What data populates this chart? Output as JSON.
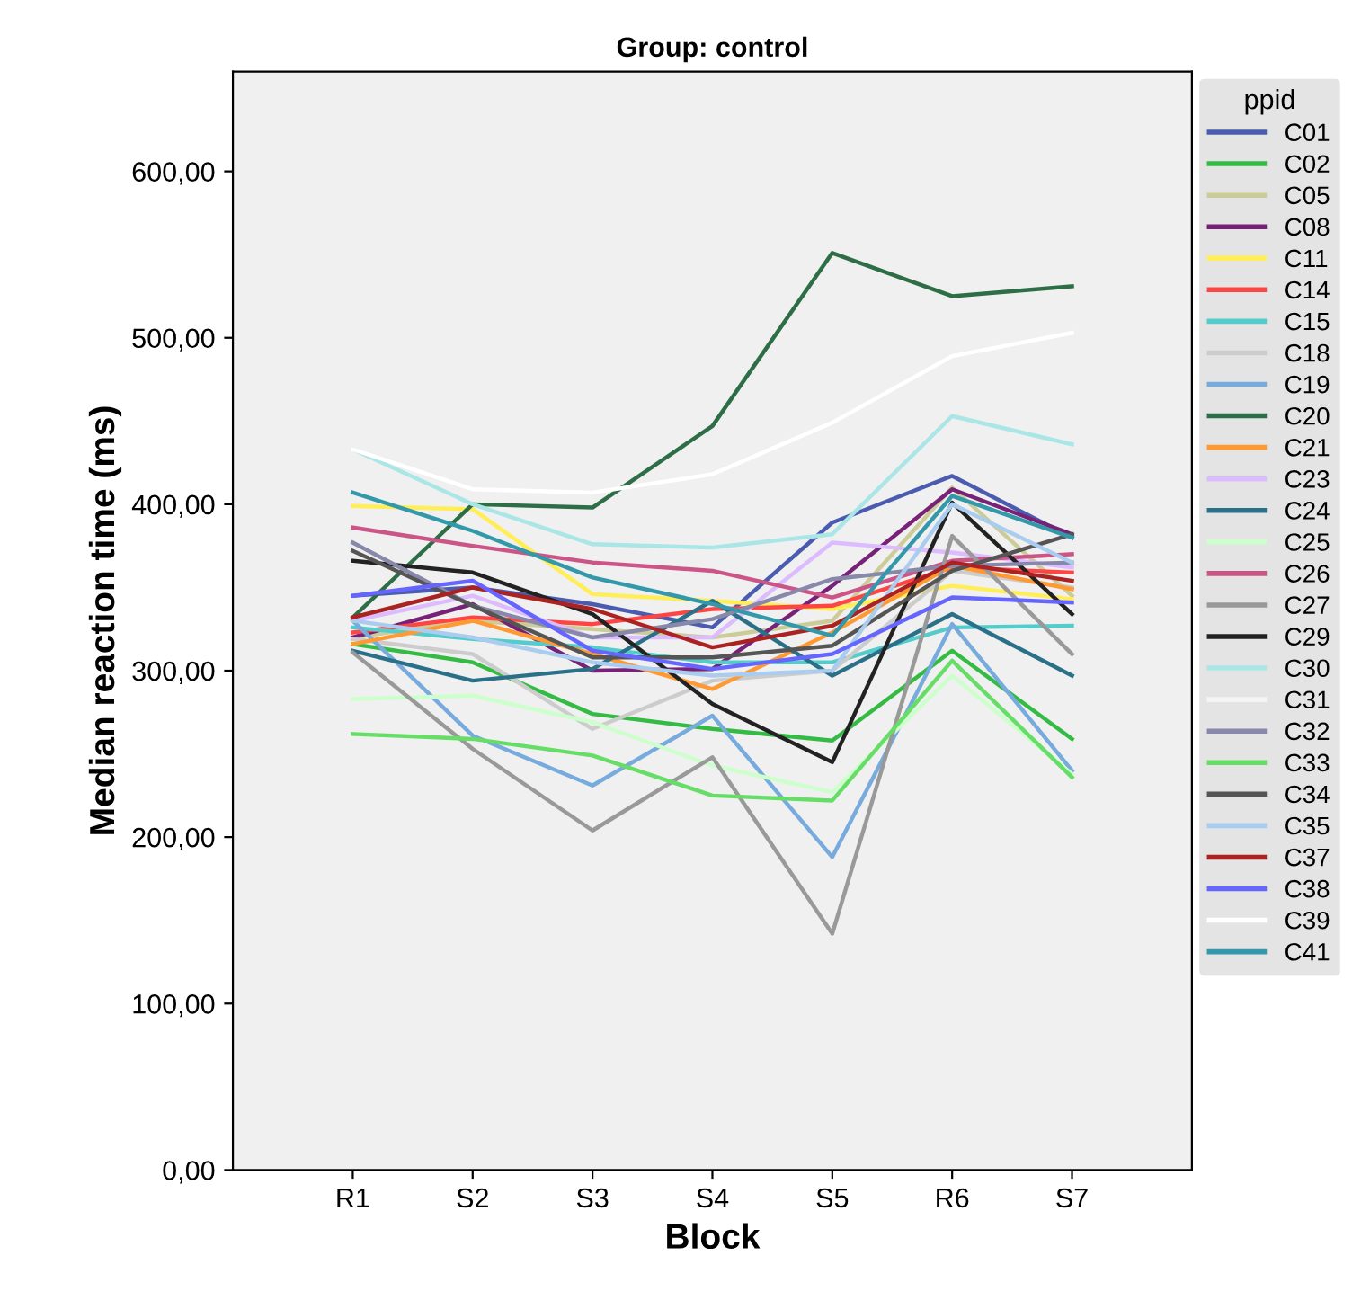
{
  "chart_data": {
    "type": "line",
    "title": "Group: control",
    "xlabel": "Block",
    "ylabel": "Median reaction time (ms)",
    "legend_title": "ppid",
    "legend": "right",
    "grid": false,
    "marker": "none",
    "line_style": "solid",
    "categories": [
      "R1",
      "S2",
      "S3",
      "S4",
      "S5",
      "R6",
      "S7"
    ],
    "ylim": [
      0,
      660
    ],
    "yticks": [
      {
        "value": 0,
        "label": "0,00"
      },
      {
        "value": 100,
        "label": "100,00"
      },
      {
        "value": 200,
        "label": "200,00"
      },
      {
        "value": 300,
        "label": "300,00"
      },
      {
        "value": 400,
        "label": "400,00"
      },
      {
        "value": 500,
        "label": "500,00"
      },
      {
        "value": 600,
        "label": "600,00"
      }
    ],
    "series": [
      {
        "name": "C01",
        "color": "#4a5bb0",
        "values": [
          345,
          350,
          340,
          326,
          389,
          417,
          380
        ]
      },
      {
        "name": "C02",
        "color": "#33bb44",
        "values": [
          316,
          305,
          274,
          265,
          258,
          312,
          259
        ]
      },
      {
        "name": "C05",
        "color": "#cccc99",
        "values": [
          320,
          330,
          325,
          320,
          330,
          410,
          345
        ]
      },
      {
        "name": "C08",
        "color": "#772277",
        "values": [
          320,
          340,
          300,
          301,
          351,
          409,
          382
        ]
      },
      {
        "name": "C11",
        "color": "#ffee55",
        "values": [
          399,
          397,
          346,
          342,
          337,
          351,
          343
        ]
      },
      {
        "name": "C14",
        "color": "#ff4444",
        "values": [
          323,
          332,
          328,
          337,
          339,
          362,
          359
        ]
      },
      {
        "name": "C15",
        "color": "#55cccc",
        "values": [
          326,
          319,
          314,
          305,
          305,
          326,
          327
        ]
      },
      {
        "name": "C18",
        "color": "#cccccc",
        "values": [
          319,
          310,
          265,
          294,
          300,
          360,
          350
        ]
      },
      {
        "name": "C19",
        "color": "#77aadd",
        "values": [
          330,
          261,
          231,
          273,
          188,
          328,
          240
        ]
      },
      {
        "name": "C20",
        "color": "#2e6e46",
        "values": [
          332,
          400,
          398,
          447,
          551,
          525,
          531
        ]
      },
      {
        "name": "C21",
        "color": "#ff9933",
        "values": [
          316,
          330,
          310,
          289,
          323,
          363,
          349
        ]
      },
      {
        "name": "C23",
        "color": "#ddbbff",
        "values": [
          330,
          345,
          320,
          320,
          377,
          371,
          362
        ]
      },
      {
        "name": "C24",
        "color": "#2a7088",
        "values": [
          312,
          294,
          301,
          342,
          297,
          334,
          297
        ]
      },
      {
        "name": "C25",
        "color": "#ccffcc",
        "values": [
          283,
          285,
          269,
          243,
          227,
          297,
          238
        ]
      },
      {
        "name": "C26",
        "color": "#cc5588",
        "values": [
          386,
          375,
          365,
          360,
          344,
          366,
          370
        ]
      },
      {
        "name": "C27",
        "color": "#999999",
        "values": [
          311,
          253,
          204,
          248,
          142,
          381,
          310
        ]
      },
      {
        "name": "C29",
        "color": "#222222",
        "values": [
          366,
          359,
          334,
          280,
          245,
          401,
          334
        ]
      },
      {
        "name": "C30",
        "color": "#aae6e6",
        "values": [
          433,
          400,
          376,
          374,
          382,
          453,
          436
        ]
      },
      {
        "name": "C31",
        "color": "#f4f4f4",
        "values": [
          null,
          null,
          null,
          null,
          null,
          null,
          null
        ]
      },
      {
        "name": "C32",
        "color": "#8888aa",
        "values": [
          377,
          339,
          320,
          331,
          355,
          363,
          365
        ]
      },
      {
        "name": "C33",
        "color": "#66dd66",
        "values": [
          262,
          259,
          249,
          225,
          222,
          306,
          236
        ]
      },
      {
        "name": "C34",
        "color": "#555555",
        "values": [
          372,
          339,
          308,
          308,
          315,
          360,
          382
        ]
      },
      {
        "name": "C35",
        "color": "#aaccee",
        "values": [
          330,
          320,
          305,
          297,
          300,
          400,
          365
        ]
      },
      {
        "name": "C37",
        "color": "#aa2222",
        "values": [
          332,
          350,
          337,
          314,
          327,
          365,
          354
        ]
      },
      {
        "name": "C38",
        "color": "#6666ff",
        "values": [
          345,
          354,
          312,
          301,
          310,
          344,
          341
        ]
      },
      {
        "name": "C39",
        "color": "#ffffff",
        "values": [
          433,
          409,
          407,
          418,
          449,
          489,
          503
        ]
      },
      {
        "name": "C41",
        "color": "#3399aa",
        "values": [
          407,
          384,
          356,
          340,
          321,
          405,
          380
        ]
      }
    ]
  }
}
